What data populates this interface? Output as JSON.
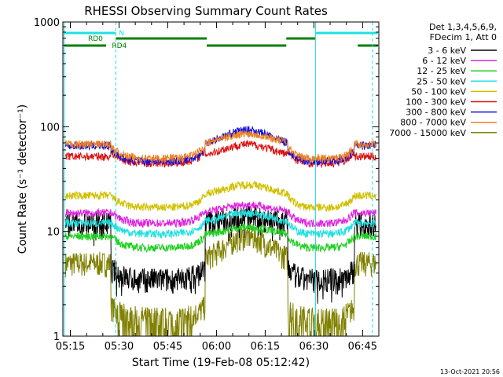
{
  "chart_data": {
    "type": "line",
    "title": "RHESSI Observing Summary Count Rates",
    "xlabel": "Start Time (19-Feb-08 05:12:42)",
    "ylabel": "Count Rate (s⁻¹ detector⁻¹)",
    "yscale": "log",
    "ylim": [
      1,
      1000
    ],
    "xlim": [
      "05:12:42",
      "06:50:00"
    ],
    "x_ticks": [
      "05:15",
      "05:30",
      "05:45",
      "06:00",
      "06:15",
      "06:30",
      "06:45"
    ],
    "y_ticks": [
      "1",
      "10",
      "100",
      "1000"
    ],
    "legend_header": [
      "Det 1,3,4,5,6,9,",
      "FDecim 1, Att 0"
    ],
    "legend_position": "right, outside plot",
    "series": [
      {
        "name": "3 - 6 keV",
        "color": "#000000",
        "night": 3.5,
        "day": 12,
        "peak": 14
      },
      {
        "name": "6 - 12 keV",
        "color": "#e020e0",
        "night": 12,
        "day": 15,
        "peak": 18
      },
      {
        "name": "12 - 25 keV",
        "color": "#20d020",
        "night": 7,
        "day": 9,
        "peak": 11
      },
      {
        "name": "25 - 50 keV",
        "color": "#20e0e0",
        "night": 9.5,
        "day": 12,
        "peak": 15
      },
      {
        "name": "50 - 100 keV",
        "color": "#d0c000",
        "night": 17,
        "day": 22,
        "peak": 28
      },
      {
        "name": "100 - 300 keV",
        "color": "#e01010",
        "night": 45,
        "day": 52,
        "peak": 68
      },
      {
        "name": "300 - 800 keV",
        "color": "#1010e0",
        "night": 47,
        "day": 66,
        "peak": 93
      },
      {
        "name": "800 - 7000 keV",
        "color": "#f08020",
        "night": 50,
        "day": 68,
        "peak": 86
      },
      {
        "name": "7000 - 15000 keV",
        "color": "#808000",
        "night": 1.5,
        "day": 5,
        "peak": 9
      }
    ],
    "annotations": {
      "night_label": "N",
      "rd0_label": "RD0",
      "rd4_label": "RD4"
    }
  },
  "footer": {
    "timestamp": "13-Oct-2021 20:56"
  }
}
